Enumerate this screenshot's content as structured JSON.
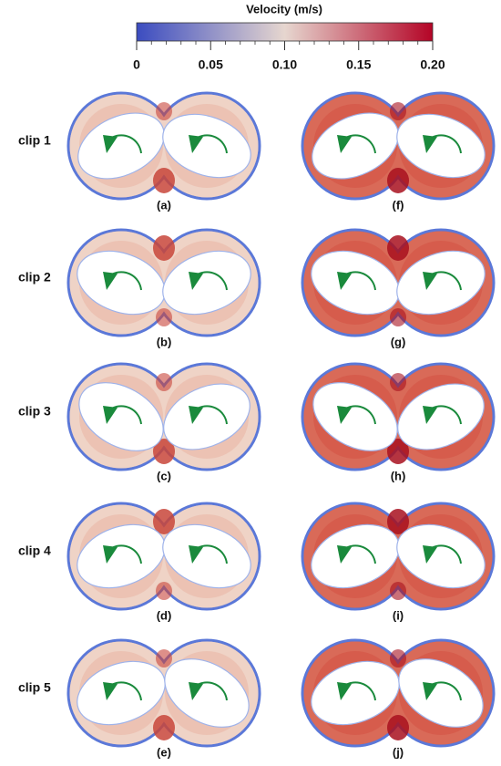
{
  "colorbar": {
    "title": "Velocity (m/s)",
    "lim": [
      0,
      0.2
    ],
    "ticks": [
      0,
      0.05,
      {
        "value": 0.1,
        "label": "0.10"
      },
      0.15,
      {
        "value": 0.2,
        "label": "0.20"
      }
    ]
  },
  "rows": [
    {
      "label": "clip 1",
      "panels": [
        "(a)",
        "(f)"
      ]
    },
    {
      "label": "clip 2",
      "panels": [
        "(b)",
        "(g)"
      ]
    },
    {
      "label": "clip 3",
      "panels": [
        "(c)",
        "(h)"
      ]
    },
    {
      "label": "clip 4",
      "panels": [
        "(d)",
        "(i)"
      ]
    },
    {
      "label": "clip 5",
      "panels": [
        "(e)",
        "(j)"
      ]
    }
  ]
}
